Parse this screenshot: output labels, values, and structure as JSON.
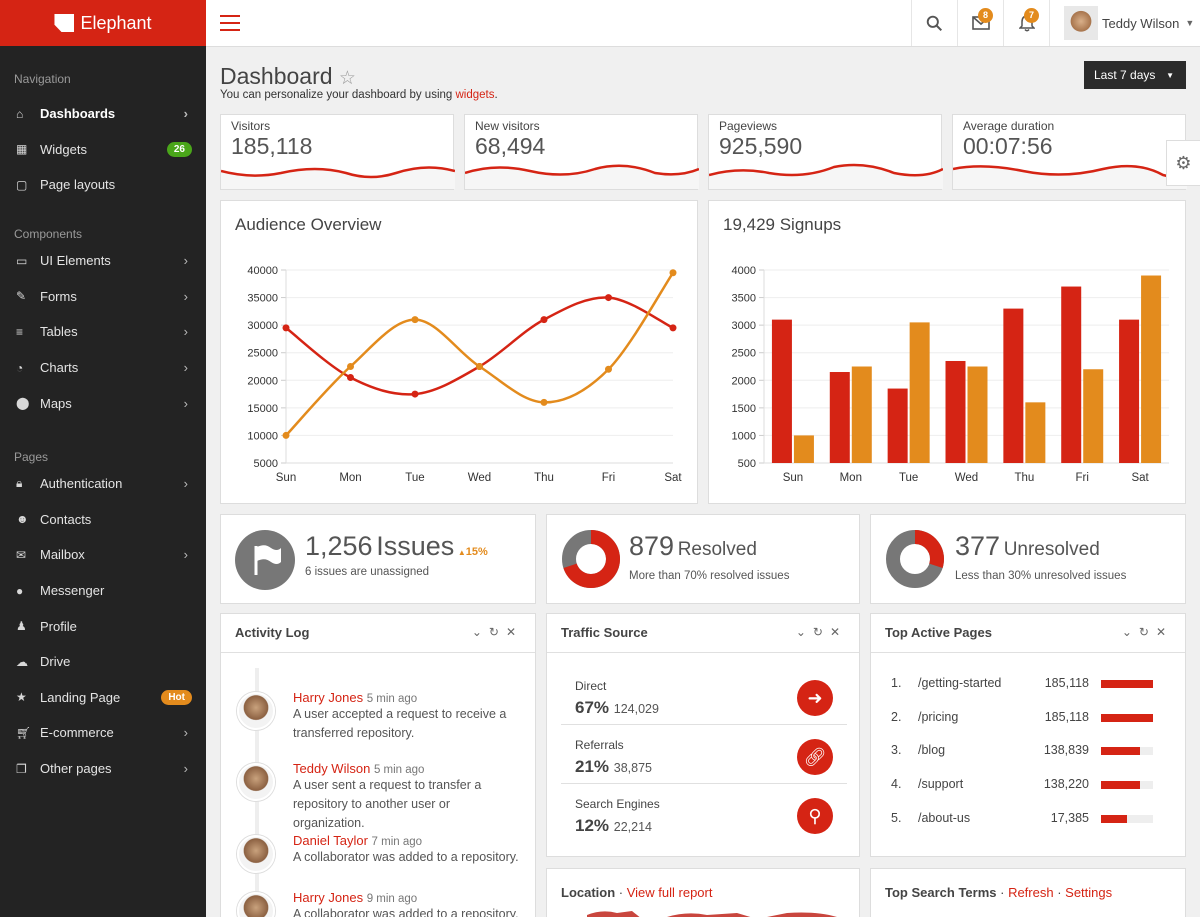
{
  "brand": {
    "name": "Elephant"
  },
  "sidebar": {
    "sections": [
      {
        "title": "Navigation",
        "items": [
          {
            "label": "Dashboards",
            "icon": "home-icon",
            "chevron": true,
            "active": true
          },
          {
            "label": "Widgets",
            "icon": "grid-icon",
            "badge": "26",
            "badge_color": "#4aa61a"
          },
          {
            "label": "Page layouts",
            "icon": "layout-icon"
          }
        ]
      },
      {
        "title": "Components",
        "items": [
          {
            "label": "UI Elements",
            "icon": "briefcase-icon",
            "chevron": true
          },
          {
            "label": "Forms",
            "icon": "edit-icon",
            "chevron": true
          },
          {
            "label": "Tables",
            "icon": "list-icon",
            "chevron": true
          },
          {
            "label": "Charts",
            "icon": "pie-chart-icon",
            "chevron": true
          },
          {
            "label": "Maps",
            "icon": "map-marker-icon",
            "chevron": true
          }
        ]
      },
      {
        "title": "Pages",
        "items": [
          {
            "label": "Authentication",
            "icon": "lock-icon",
            "chevron": true
          },
          {
            "label": "Contacts",
            "icon": "users-icon"
          },
          {
            "label": "Mailbox",
            "icon": "envelope-icon",
            "chevron": true
          },
          {
            "label": "Messenger",
            "icon": "chat-icon"
          },
          {
            "label": "Profile",
            "icon": "user-icon"
          },
          {
            "label": "Drive",
            "icon": "cloud-icon"
          },
          {
            "label": "Landing Page",
            "icon": "star-icon",
            "badge": "Hot",
            "badge_color": "#e38b1d"
          },
          {
            "label": "E-commerce",
            "icon": "cart-icon",
            "chevron": true
          },
          {
            "label": "Other pages",
            "icon": "copy-icon",
            "chevron": true
          }
        ]
      }
    ]
  },
  "topbar": {
    "mail_count": "8",
    "notif_count": "7",
    "user_name": "Teddy Wilson"
  },
  "page": {
    "title": "Dashboard",
    "subtitle": "You can personalize your dashboard by using",
    "subtitle_link": "widgets",
    "range": "Last 7 days"
  },
  "stats": [
    {
      "label": "Visitors",
      "value": "185,118"
    },
    {
      "label": "New visitors",
      "value": "68,494"
    },
    {
      "label": "Pageviews",
      "value": "925,590"
    },
    {
      "label": "Average duration",
      "value": "00:07:56"
    }
  ],
  "audience": {
    "title": "Audience Overview"
  },
  "signups": {
    "title": "19,429 Signups"
  },
  "chart_data": [
    {
      "type": "line",
      "title": "Audience Overview",
      "categories": [
        "Sun",
        "Mon",
        "Tue",
        "Wed",
        "Thu",
        "Fri",
        "Sat"
      ],
      "ylim": [
        5000,
        40000
      ],
      "yticks": [
        40000,
        35000,
        30000,
        25000,
        20000,
        15000,
        10000,
        5000
      ],
      "series": [
        {
          "color": "#d52414",
          "values": [
            29500,
            20500,
            17500,
            22500,
            31000,
            35000,
            29500
          ]
        },
        {
          "color": "#e38b1d",
          "values": [
            10000,
            22500,
            31000,
            22500,
            16000,
            22000,
            39500
          ]
        }
      ]
    },
    {
      "type": "bar",
      "title": "19,429 Signups",
      "categories": [
        "Sun",
        "Mon",
        "Tue",
        "Wed",
        "Thu",
        "Fri",
        "Sat"
      ],
      "ylim": [
        500,
        4000
      ],
      "yticks": [
        4000,
        3500,
        3000,
        2500,
        2000,
        1500,
        1000,
        500
      ],
      "series": [
        {
          "color": "#d52414",
          "values": [
            3100,
            2150,
            1850,
            2350,
            3300,
            3700,
            3100
          ]
        },
        {
          "color": "#e38b1d",
          "values": [
            1000,
            2250,
            3050,
            2250,
            1600,
            2200,
            3900
          ]
        }
      ]
    }
  ],
  "issues": {
    "count": "1,256",
    "label": "Issues",
    "change": "15%",
    "sub": "6 issues are unassigned"
  },
  "resolved": {
    "count": "879",
    "label": "Resolved",
    "sub": "More than 70% resolved issues",
    "fraction": 0.7
  },
  "unresolved": {
    "count": "377",
    "label": "Unresolved",
    "sub": "Less than 30% unresolved issues",
    "fraction": 0.3
  },
  "activity": {
    "title": "Activity Log",
    "items": [
      {
        "name": "Harry Jones",
        "time": "5 min ago",
        "text": "A user accepted a request to receive a transferred repository."
      },
      {
        "name": "Teddy Wilson",
        "time": "5 min ago",
        "text": "A user sent a request to transfer a repository to another user or organization."
      },
      {
        "name": "Daniel Taylor",
        "time": "7 min ago",
        "text": "A collaborator was added to a repository."
      },
      {
        "name": "Harry Jones",
        "time": "9 min ago",
        "text": "A collaborator was added to a repository."
      }
    ]
  },
  "traffic": {
    "title": "Traffic Source",
    "items": [
      {
        "label": "Direct",
        "pct": "67%",
        "value": "124,029",
        "icon": "arrow-right-icon"
      },
      {
        "label": "Referrals",
        "pct": "21%",
        "value": "38,875",
        "icon": "link-icon"
      },
      {
        "label": "Search Engines",
        "pct": "12%",
        "value": "22,214",
        "icon": "search-icon"
      }
    ]
  },
  "top_pages": {
    "title": "Top Active Pages",
    "items": [
      {
        "num": "1.",
        "page": "/getting-started",
        "value": "185,118",
        "fraction": 1.0
      },
      {
        "num": "2.",
        "page": "/pricing",
        "value": "185,118",
        "fraction": 1.0
      },
      {
        "num": "3.",
        "page": "/blog",
        "value": "138,839",
        "fraction": 0.75
      },
      {
        "num": "4.",
        "page": "/support",
        "value": "138,220",
        "fraction": 0.75
      },
      {
        "num": "5.",
        "page": "/about-us",
        "value": "17,385",
        "fraction": 0.5
      }
    ]
  },
  "location": {
    "title": "Location",
    "link": "View full report"
  },
  "search_terms": {
    "title": "Top Search Terms",
    "refresh": "Refresh",
    "settings": "Settings"
  }
}
